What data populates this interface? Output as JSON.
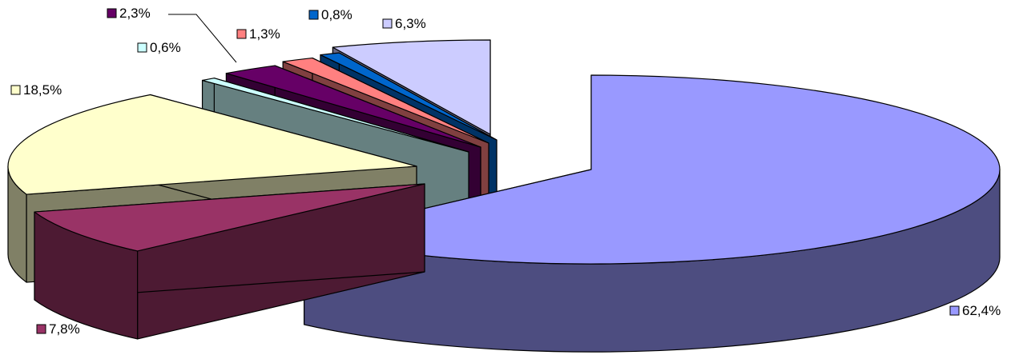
{
  "chart_data": {
    "type": "pie",
    "title": "",
    "style": "3d-exploded",
    "slices": [
      {
        "label": "62,4%",
        "value": 62.4,
        "color": "#9999ff"
      },
      {
        "label": "7,8%",
        "value": 7.8,
        "color": "#993366"
      },
      {
        "label": "18,5%",
        "value": 18.5,
        "color": "#ffffcc"
      },
      {
        "label": "0,6%",
        "value": 0.6,
        "color": "#ccffff"
      },
      {
        "label": "2,3%",
        "value": 2.3,
        "color": "#660066"
      },
      {
        "label": "1,3%",
        "value": 1.3,
        "color": "#ff8080"
      },
      {
        "label": "0,8%",
        "value": 0.8,
        "color": "#0066cc"
      },
      {
        "label": "6,3%",
        "value": 6.3,
        "color": "#ccccff"
      }
    ]
  }
}
